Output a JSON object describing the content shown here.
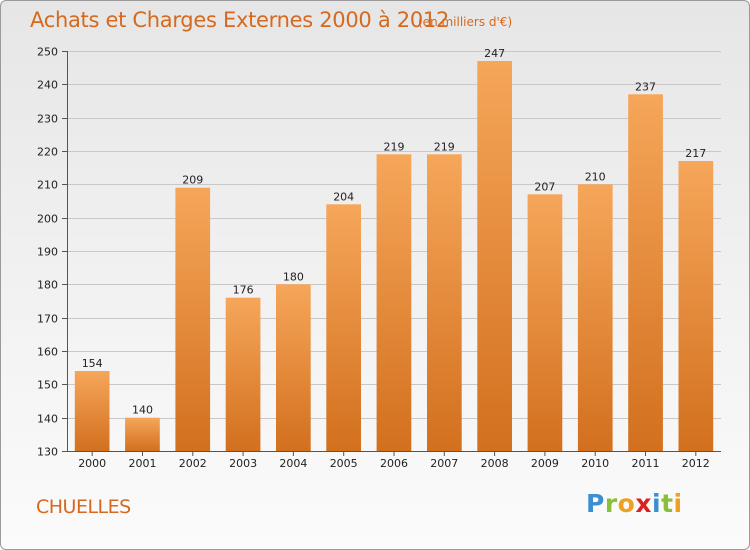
{
  "chart_data": {
    "type": "bar",
    "title": "Achats et Charges Externes 2000 à 2012",
    "subtitle": "(en milliers d'€)",
    "categories": [
      "2000",
      "2001",
      "2002",
      "2003",
      "2004",
      "2005",
      "2006",
      "2007",
      "2008",
      "2009",
      "2010",
      "2011",
      "2012"
    ],
    "values": [
      154,
      140,
      209,
      176,
      180,
      204,
      219,
      219,
      247,
      207,
      210,
      237,
      217
    ],
    "value_labels": [
      "154",
      "140",
      "209",
      "176",
      "180",
      "204",
      "219",
      "219",
      "247",
      "207",
      "210",
      "237",
      "217"
    ],
    "ylim": [
      130,
      250
    ],
    "yticks": [
      130,
      140,
      150,
      160,
      170,
      180,
      190,
      200,
      210,
      220,
      230,
      240,
      250
    ],
    "ytick_labels": [
      "130",
      "140",
      "150",
      "160",
      "170",
      "180",
      "190",
      "200",
      "210",
      "220",
      "230",
      "240",
      "250"
    ],
    "xlabel": "",
    "ylabel": "",
    "grid": true,
    "legend": "none",
    "colors": {
      "bar_light": "#f6a65a",
      "bar_dark": "#d2701e",
      "title": "#d6691e",
      "grid": "#c8c8c8"
    }
  },
  "footer": {
    "commune": "CHUELLES"
  },
  "brand": {
    "name": "Proxiti",
    "letters": [
      {
        "ch": "P",
        "color": "#3b8fd0"
      },
      {
        "ch": "r",
        "color": "#8bbf3a"
      },
      {
        "ch": "o",
        "color": "#f0a020"
      },
      {
        "ch": "x",
        "color": "#d8231f"
      },
      {
        "ch": "i",
        "color": "#3b8fd0"
      },
      {
        "ch": "t",
        "color": "#8bbf3a"
      },
      {
        "ch": "i",
        "color": "#f0a020"
      }
    ]
  }
}
